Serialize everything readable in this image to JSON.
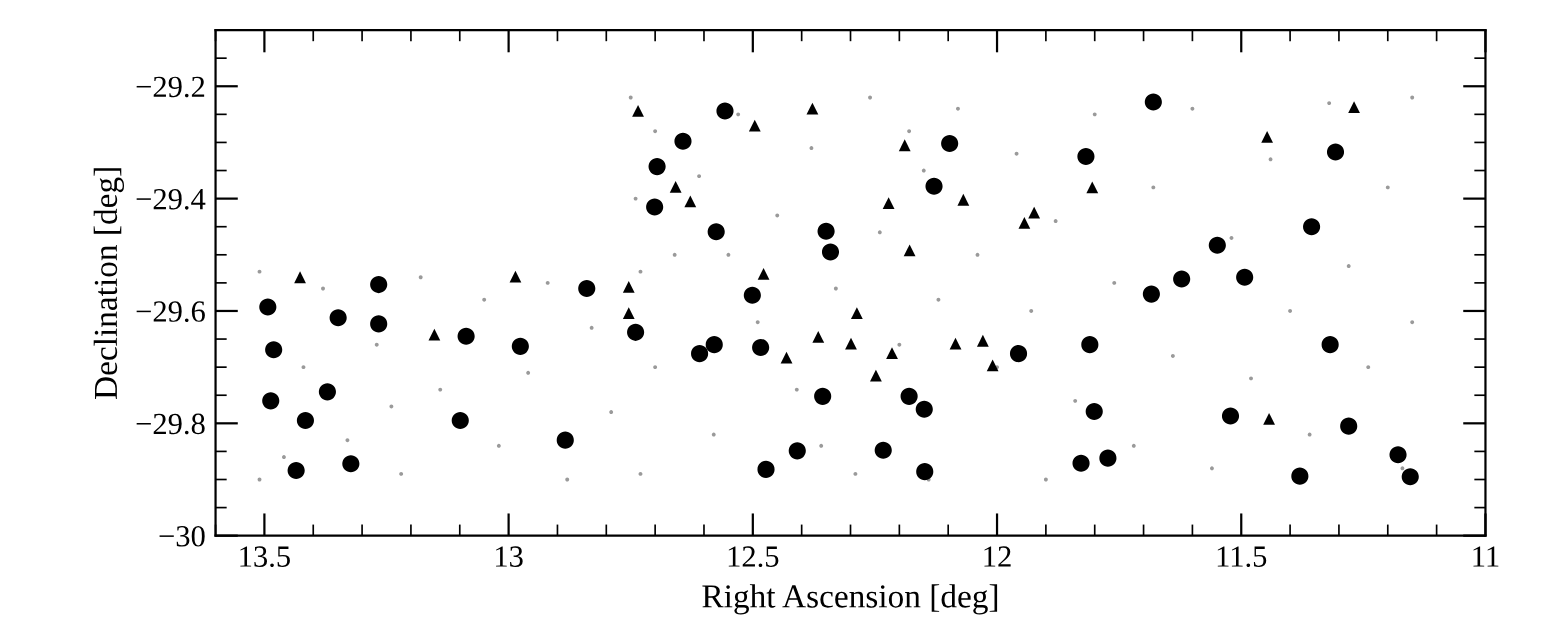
{
  "chart_data": {
    "type": "scatter",
    "xlabel": "Right Ascension [deg]",
    "ylabel": "Declination [deg]",
    "xlim": [
      13.6,
      11.0
    ],
    "ylim": [
      -30,
      -29.1
    ],
    "xticks": [
      13.5,
      13,
      12.5,
      12,
      11.5,
      11
    ],
    "yticks": [
      {
        "value": -30,
        "label": "−30"
      },
      {
        "value": -29.8,
        "label": "−29.8"
      },
      {
        "value": -29.6,
        "label": "−29.6"
      },
      {
        "value": -29.4,
        "label": "−29.4"
      },
      {
        "value": -29.2,
        "label": "−29.2"
      }
    ],
    "series": [
      {
        "color": "#9a9a9a",
        "marker": "circle",
        "x": [
          13.51,
          13.51,
          13.42,
          13.38,
          13.33,
          13.27,
          13.22,
          13.18,
          13.14,
          13.05,
          13.02,
          12.96,
          12.92,
          12.88,
          12.83,
          12.79,
          12.73,
          12.73,
          13.46,
          13.24,
          12.75,
          12.74,
          12.7,
          12.66,
          12.61,
          12.58,
          12.53,
          12.49,
          12.45,
          12.41,
          12.38,
          12.33,
          12.29,
          12.26,
          12.24,
          12.2,
          12.15,
          12.14,
          12.12,
          12.08,
          12.04,
          12.0,
          11.96,
          11.93,
          11.9,
          11.88,
          11.84,
          11.8,
          11.76,
          11.72,
          11.68,
          11.64,
          11.6,
          11.56,
          11.52,
          11.48,
          11.44,
          11.4,
          11.36,
          11.32,
          11.28,
          11.24,
          11.2,
          11.17,
          11.15,
          11.15,
          12.7,
          12.55,
          12.36,
          12.18
        ],
        "values": [
          -29.53,
          -29.9,
          -29.7,
          -29.56,
          -29.83,
          -29.66,
          -29.89,
          -29.54,
          -29.74,
          -29.58,
          -29.84,
          -29.71,
          -29.55,
          -29.9,
          -29.63,
          -29.78,
          -29.53,
          -29.89,
          -29.86,
          -29.77,
          -29.22,
          -29.4,
          -29.28,
          -29.5,
          -29.36,
          -29.82,
          -29.25,
          -29.62,
          -29.43,
          -29.74,
          -29.31,
          -29.56,
          -29.89,
          -29.22,
          -29.46,
          -29.66,
          -29.35,
          -29.9,
          -29.58,
          -29.24,
          -29.5,
          -29.7,
          -29.32,
          -29.6,
          -29.9,
          -29.44,
          -29.76,
          -29.25,
          -29.55,
          -29.84,
          -29.38,
          -29.68,
          -29.24,
          -29.88,
          -29.47,
          -29.72,
          -29.33,
          -29.6,
          -29.82,
          -29.23,
          -29.52,
          -29.7,
          -29.38,
          -29.88,
          -29.22,
          -29.62,
          -29.7,
          -29.5,
          -29.84,
          -29.28
        ]
      },
      {
        "color": "#000000",
        "marker": "circle",
        "x": [
          13.493,
          13.481,
          13.487,
          13.416,
          13.435,
          13.349,
          13.371,
          13.323,
          13.266,
          13.266,
          13.087,
          13.099,
          12.976,
          12.884,
          12.84,
          12.74,
          12.557,
          12.643,
          12.696,
          12.701,
          12.575,
          12.35,
          12.341,
          12.097,
          12.129,
          12.501,
          12.609,
          12.579,
          12.484,
          12.357,
          12.18,
          12.149,
          12.409,
          12.473,
          12.233,
          12.148,
          11.956,
          11.68,
          11.818,
          11.307,
          11.356,
          11.549,
          11.622,
          11.684,
          11.493,
          11.81,
          11.318,
          11.801,
          11.522,
          11.28,
          11.828,
          11.773,
          11.38,
          11.179,
          11.154
        ],
        "values": [
          -29.593,
          -29.669,
          -29.76,
          -29.795,
          -29.884,
          -29.612,
          -29.744,
          -29.872,
          -29.553,
          -29.623,
          -29.645,
          -29.795,
          -29.663,
          -29.83,
          -29.56,
          -29.638,
          -29.244,
          -29.298,
          -29.343,
          -29.415,
          -29.459,
          -29.458,
          -29.495,
          -29.302,
          -29.378,
          -29.572,
          -29.676,
          -29.66,
          -29.665,
          -29.752,
          -29.752,
          -29.775,
          -29.849,
          -29.882,
          -29.848,
          -29.886,
          -29.676,
          -29.228,
          -29.325,
          -29.317,
          -29.45,
          -29.483,
          -29.543,
          -29.57,
          -29.54,
          -29.66,
          -29.66,
          -29.779,
          -29.787,
          -29.805,
          -29.871,
          -29.862,
          -29.894,
          -29.856,
          -29.895
        ]
      },
      {
        "color": "#000000",
        "marker": "triangle",
        "x": [
          13.427,
          13.152,
          12.986,
          12.754,
          12.754,
          12.735,
          12.378,
          12.496,
          12.658,
          12.628,
          12.189,
          12.069,
          12.222,
          11.924,
          11.944,
          12.179,
          12.478,
          12.287,
          12.366,
          12.299,
          12.431,
          12.215,
          12.085,
          12.029,
          12.009,
          12.248,
          11.269,
          11.447,
          11.805,
          11.443
        ],
        "values": [
          -29.54,
          -29.642,
          -29.539,
          -29.557,
          -29.604,
          -29.244,
          -29.24,
          -29.27,
          -29.379,
          -29.405,
          -29.305,
          -29.402,
          -29.408,
          -29.425,
          -29.443,
          -29.492,
          -29.534,
          -29.604,
          -29.646,
          -29.658,
          -29.683,
          -29.675,
          -29.658,
          -29.653,
          -29.697,
          -29.715,
          -29.237,
          -29.29,
          -29.38,
          -29.792
        ]
      }
    ]
  }
}
